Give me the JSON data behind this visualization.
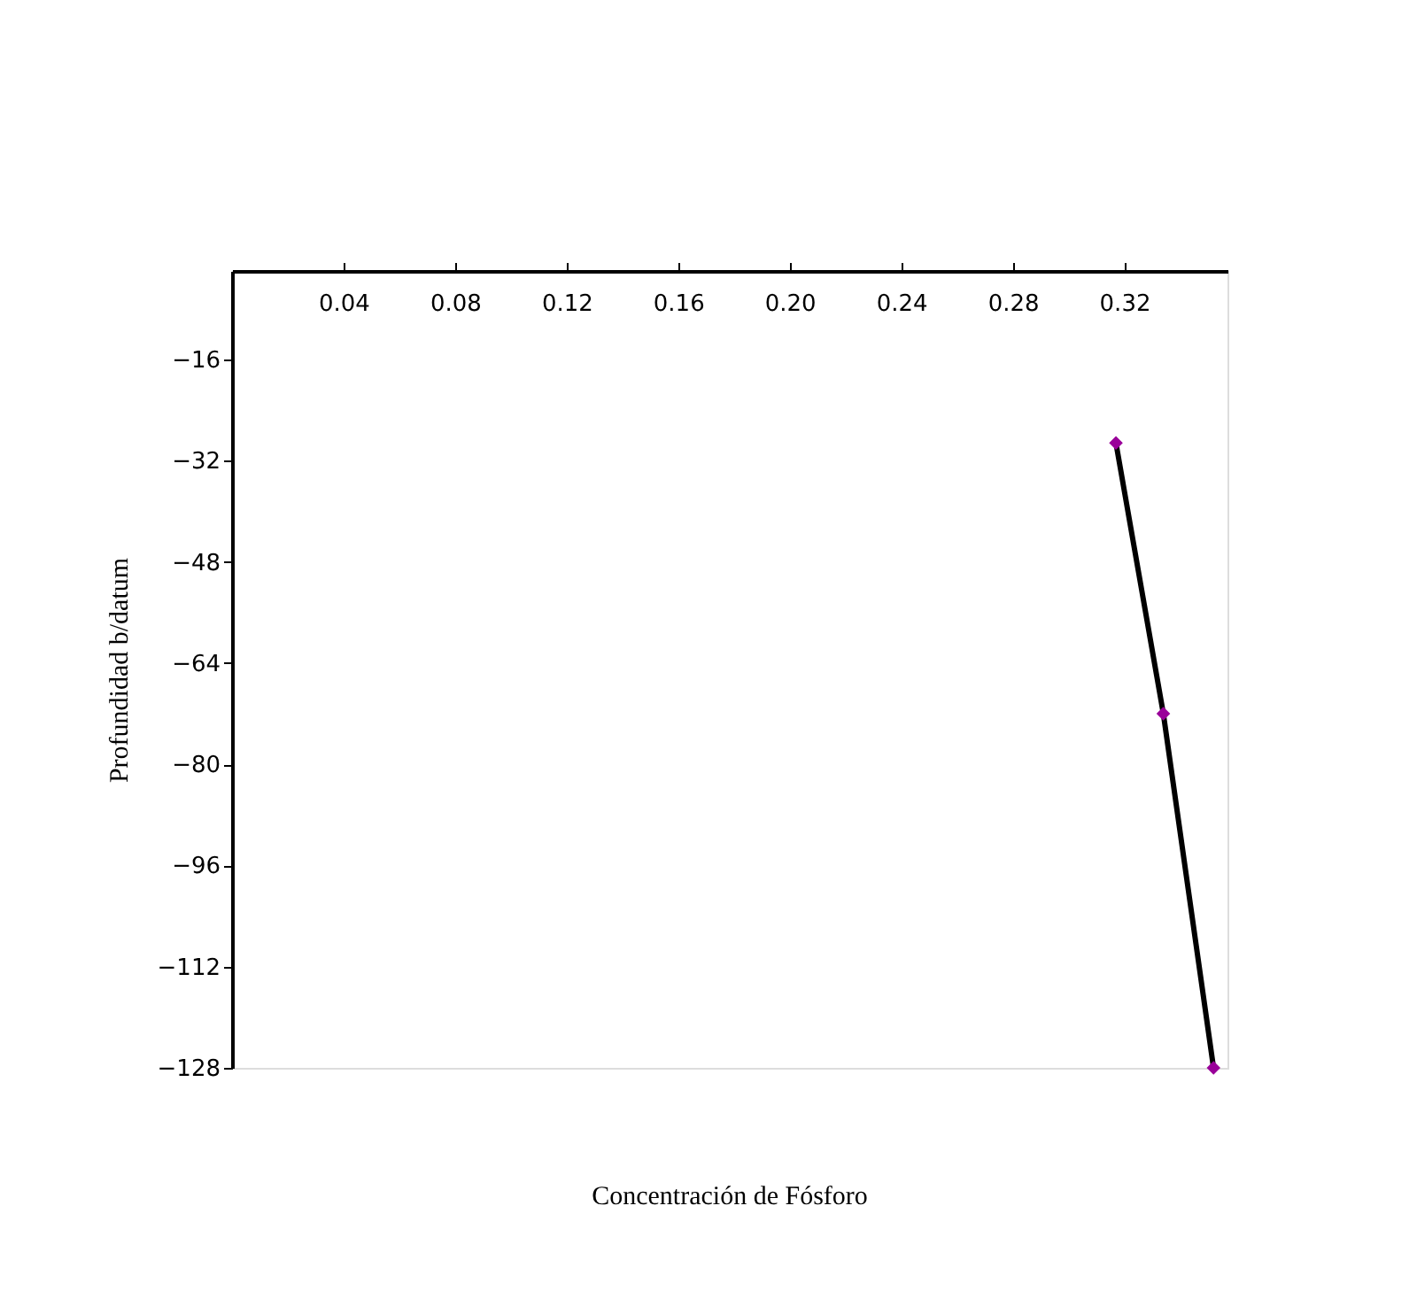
{
  "chart_data": {
    "type": "line",
    "xlabel": "Concentración de Fósforo",
    "ylabel": "Profundidad b/datum",
    "x": [
      0.317,
      0.334,
      0.352
    ],
    "series": [
      {
        "color": "#000000",
        "values": [
          -29.2,
          -72.0,
          -128
        ]
      }
    ],
    "marker": "diamond",
    "xlim": [
      0,
      0.357
    ],
    "xticks": [
      0.04,
      0.08,
      0.12,
      0.16,
      {
        "value": 0.2,
        "label": "0.20"
      },
      0.24,
      0.28,
      0.32
    ],
    "ylim": [
      -128,
      -2
    ],
    "yticks": [
      -16,
      -32,
      -48,
      -64,
      -80,
      -96,
      -112,
      -128
    ],
    "grid": false
  }
}
